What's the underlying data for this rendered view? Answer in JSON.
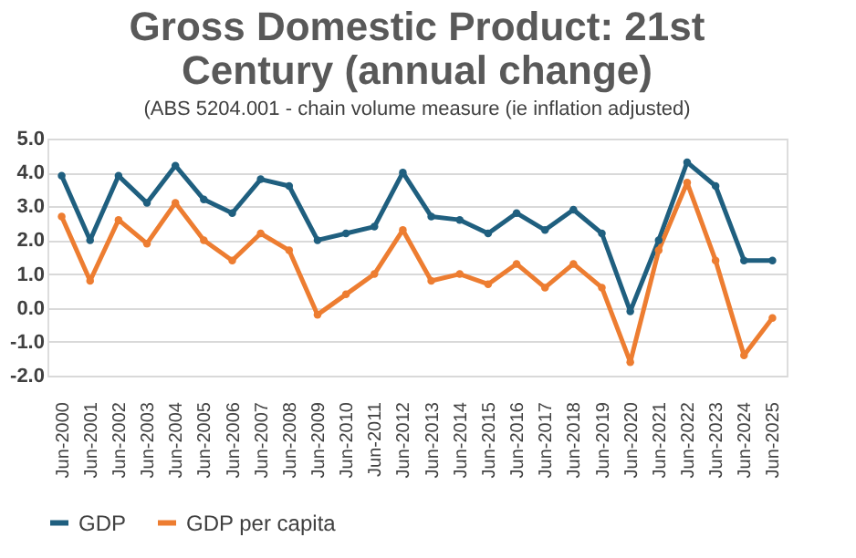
{
  "chart_data": {
    "type": "line",
    "title": [
      "Gross Domestic Product: 21st",
      "Century (annual change)"
    ],
    "subtitle": "(ABS 5204.001 - chain volume measure (ie inflation adjusted)",
    "categories": [
      "Jun-2000",
      "Jun-2001",
      "Jun-2002",
      "Jun-2003",
      "Jun-2004",
      "Jun-2005",
      "Jun-2006",
      "Jun-2007",
      "Jun-2008",
      "Jun-2009",
      "Jun-2010",
      "Jun-2011",
      "Jun-2012",
      "Jun-2013",
      "Jun-2014",
      "Jun-2015",
      "Jun-2016",
      "Jun-2017",
      "Jun-2018",
      "Jun-2019",
      "Jun-2020",
      "Jun-2021",
      "Jun-2022",
      "Jun-2023",
      "Jun-2024",
      "Jun-2025"
    ],
    "series": [
      {
        "name": "GDP",
        "color": "#1f5f7f",
        "values": [
          3.9,
          2.0,
          3.9,
          3.1,
          4.2,
          3.2,
          2.8,
          3.8,
          3.6,
          2.0,
          2.2,
          2.4,
          4.0,
          2.7,
          2.6,
          2.2,
          2.8,
          2.3,
          2.9,
          2.2,
          -0.1,
          2.0,
          4.3,
          3.6,
          1.4,
          1.4
        ]
      },
      {
        "name": "GDP per capita",
        "color": "#ed7d31",
        "values": [
          2.7,
          0.8,
          2.6,
          1.9,
          3.1,
          2.0,
          1.4,
          2.2,
          1.7,
          -0.2,
          0.4,
          1.0,
          2.3,
          0.8,
          1.0,
          0.7,
          1.3,
          0.6,
          1.3,
          0.6,
          -1.6,
          1.7,
          3.7,
          1.4,
          -1.4,
          -0.3
        ]
      }
    ],
    "ylim": [
      -2.0,
      5.0
    ],
    "yticks": [
      {
        "value": -2,
        "label": "-2.0"
      },
      {
        "value": -1,
        "label": "-1.0"
      },
      {
        "value": 0,
        "label": "0.0"
      },
      {
        "value": 1,
        "label": "1.0"
      },
      {
        "value": 2,
        "label": "2.0"
      },
      {
        "value": 3,
        "label": "3.0"
      },
      {
        "value": 4,
        "label": "4.0"
      },
      {
        "value": 5,
        "label": "5.0"
      }
    ],
    "grid": "y",
    "legend": "bottom",
    "marker": "circle",
    "line_style": "solid"
  }
}
